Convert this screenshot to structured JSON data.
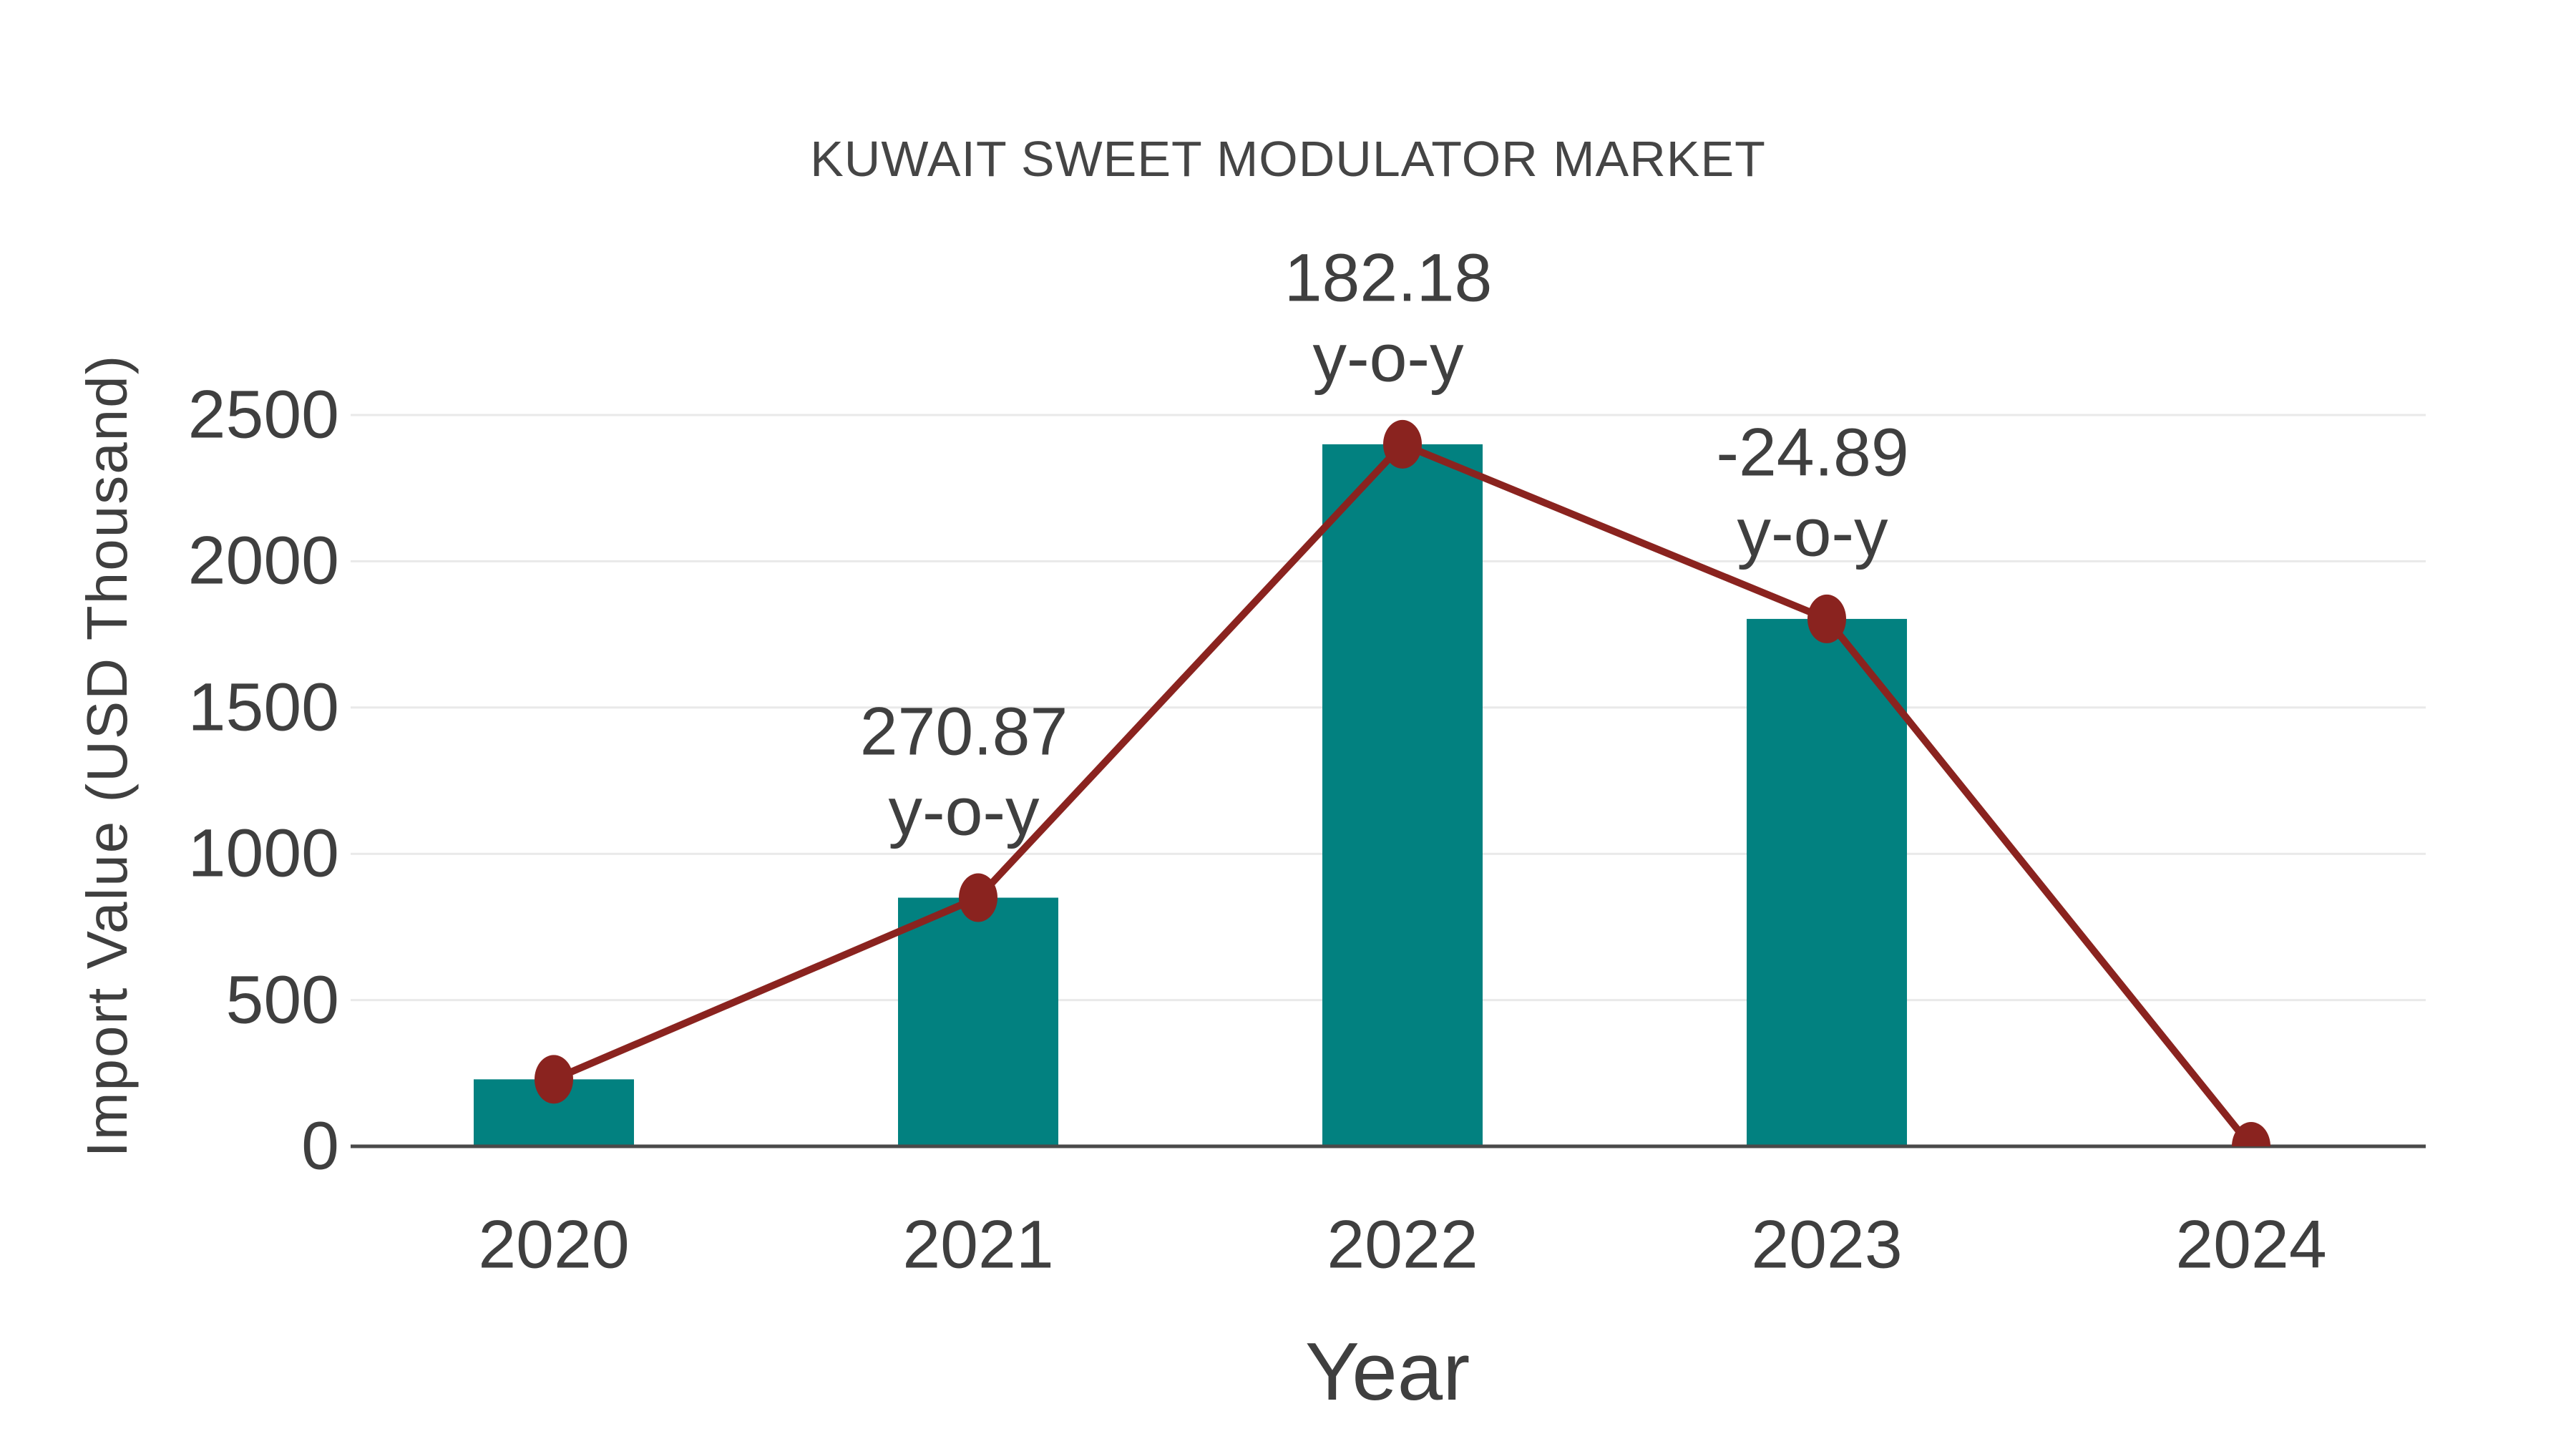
{
  "title": "KUWAIT SWEET MODULATOR MARKET",
  "axes": {
    "y_label": "Import Value (USD Thousand)",
    "x_label": "Year"
  },
  "chart_data": {
    "type": "bar",
    "subtype": "bar-with-line-overlay",
    "title": "KUWAIT SWEET MODULATOR MARKET",
    "xlabel": "Year",
    "ylabel": "Import Value (USD Thousand)",
    "categories": [
      "2020",
      "2021",
      "2022",
      "2023",
      "2024"
    ],
    "series": [
      {
        "id": "bars",
        "type": "bar",
        "values": [
          229,
          850,
          2400,
          1803,
          null
        ]
      },
      {
        "id": "line",
        "type": "line",
        "values": [
          229,
          850,
          2400,
          1803,
          0
        ]
      }
    ],
    "annotations": [
      {
        "category": "2021",
        "value_text": "270.87",
        "suffix_text": "y-o-y"
      },
      {
        "category": "2022",
        "value_text": "182.18",
        "suffix_text": "y-o-y"
      },
      {
        "category": "2023",
        "value_text": "-24.89",
        "suffix_text": "y-o-y"
      }
    ],
    "yticks": [
      0,
      500,
      1000,
      1500,
      2000,
      2500
    ],
    "ylim": [
      0,
      2640
    ],
    "grid": true,
    "legend": false,
    "colors": {
      "bar": "#028180",
      "line": "#8a231f",
      "marker": "#8a231f",
      "grid": "#e9e9e9",
      "axis_line": "#4a4a4a",
      "text": "#3f3f3f"
    }
  }
}
